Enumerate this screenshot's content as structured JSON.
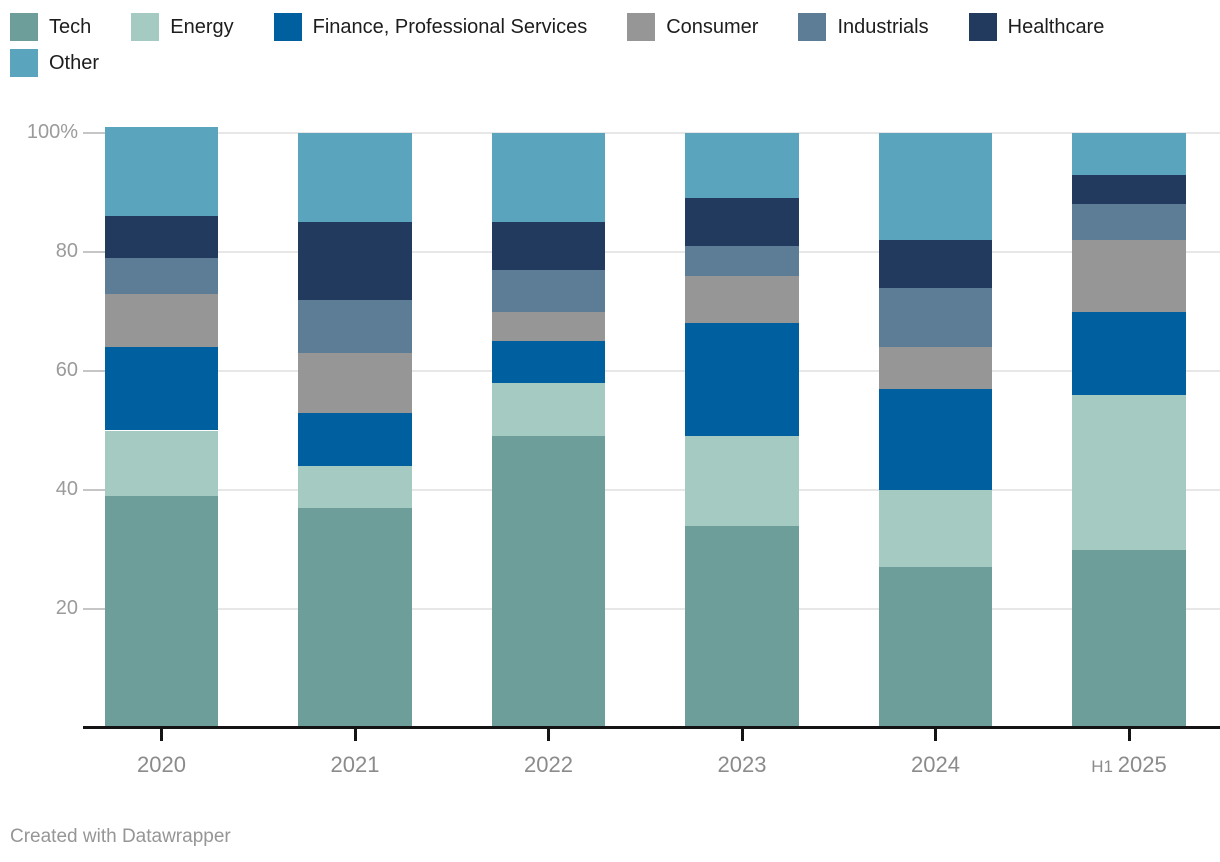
{
  "footer": {
    "attribution": "Created with Datawrapper"
  },
  "chart_data": {
    "type": "bar",
    "variant": "stacked-column-100",
    "unit": "%",
    "grid": true,
    "legend_position": "top",
    "categories": [
      "2020",
      "2021",
      "2022",
      "2023",
      "2024",
      "H1 2025"
    ],
    "series": [
      {
        "name": "Tech",
        "color": "#6e9e99",
        "values": [
          39,
          37,
          49,
          34,
          27,
          30
        ]
      },
      {
        "name": "Energy",
        "color": "#a5cac2",
        "values": [
          11,
          7,
          9,
          15,
          13,
          26
        ]
      },
      {
        "name": "Finance, Professional Services",
        "color": "#005f9e",
        "values": [
          14,
          9,
          7,
          19,
          17,
          14
        ]
      },
      {
        "name": "Consumer",
        "color": "#969696",
        "values": [
          9,
          10,
          5,
          8,
          7,
          12
        ]
      },
      {
        "name": "Industrials",
        "color": "#5c7d95",
        "values": [
          6,
          9,
          7,
          5,
          10,
          6
        ]
      },
      {
        "name": "Healthcare",
        "color": "#213a5e",
        "values": [
          7,
          13,
          8,
          8,
          8,
          5
        ]
      },
      {
        "name": "Other",
        "color": "#5aa4be",
        "values": [
          15,
          15,
          15,
          11,
          18,
          7
        ]
      }
    ],
    "y_axis": {
      "ylim": [
        0,
        100
      ],
      "ticks": [
        {
          "value": 20,
          "label": "20"
        },
        {
          "value": 40,
          "label": "40"
        },
        {
          "value": 60,
          "label": "60"
        },
        {
          "value": 80,
          "label": "80"
        },
        {
          "value": 100,
          "label": "100%"
        }
      ]
    }
  }
}
